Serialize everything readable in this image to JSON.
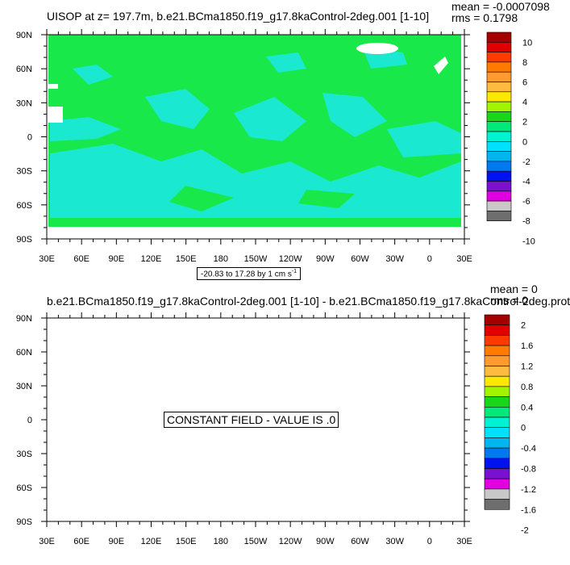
{
  "top_panel": {
    "title": "UISOP at z= 197.7m, b.e21.BCma1850.f19_g17.8kaControl-2deg.001 [1-10]",
    "mean": "mean = -0.0007098",
    "rms": "rms = 0.1798",
    "range_label": "-20.83 to 17.28 by 1 cm s",
    "range_unit_exp": "-1"
  },
  "bottom_panel": {
    "title": "b.e21.BCma1850.f19_g17.8kaControl-2deg.001 [1-10] - b.e21.BCma1850.f19_g17.8kaControl-2deg.prot",
    "mean": "mean = 0",
    "rms": "rms = 0",
    "constant_label": "CONSTANT FIELD - VALUE IS .0"
  },
  "chart_data": [
    {
      "type": "heatmap",
      "title": "UISOP at z= 197.7m, b.e21.BCma1850.f19_g17.8kaControl-2deg.001 [1-10]",
      "x_tick_labels": [
        "30E",
        "60E",
        "90E",
        "120E",
        "150E",
        "180",
        "150W",
        "120W",
        "90W",
        "60W",
        "30W",
        "0",
        "30E"
      ],
      "y_tick_labels": [
        "90N",
        "60N",
        "30N",
        "0",
        "30S",
        "60S",
        "90S"
      ],
      "colorbar_labels": [
        "10",
        "8",
        "6",
        "4",
        "2",
        "0",
        "-2",
        "-4",
        "-6",
        "-8",
        "-10"
      ],
      "colorbar_colors": [
        "#a50000",
        "#e00000",
        "#ff3a00",
        "#ff7a00",
        "#ff9b30",
        "#ffbb40",
        "#ffe800",
        "#a2f500",
        "#19d619",
        "#00ea7a",
        "#00f2d2",
        "#00e0ff",
        "#00b6f0",
        "#0078f0",
        "#0012f0",
        "#7a10d0",
        "#e000e0",
        "#c8c8c8",
        "#6e6e6e"
      ],
      "dominant_value_color": "#19e84a",
      "secondary_value_color": "#1ae8d0",
      "mean": -0.0007098,
      "rms": 0.1798,
      "min": -20.83,
      "max": 17.28,
      "interval": 1,
      "units": "cm s-1"
    },
    {
      "type": "heatmap",
      "title": "b.e21.BCma1850.f19_g17.8kaControl-2deg.001 [1-10] - b.e21.BCma1850.f19_g17.8kaControl-2deg.prot",
      "x_tick_labels": [
        "30E",
        "60E",
        "90E",
        "120E",
        "150E",
        "180",
        "150W",
        "120W",
        "90W",
        "60W",
        "30W",
        "0",
        "30E"
      ],
      "y_tick_labels": [
        "90N",
        "60N",
        "30N",
        "0",
        "30S",
        "60S",
        "90S"
      ],
      "colorbar_labels": [
        "2",
        "1.6",
        "1.2",
        "0.8",
        "0.4",
        "0",
        "-0.4",
        "-0.8",
        "-1.2",
        "-1.6",
        "-2"
      ],
      "colorbar_colors": [
        "#a50000",
        "#e00000",
        "#ff3a00",
        "#ff7a00",
        "#ff9b30",
        "#ffbb40",
        "#ffe800",
        "#a2f500",
        "#19d619",
        "#00ea7a",
        "#00f2d2",
        "#00e0ff",
        "#00b6f0",
        "#0078f0",
        "#0012f0",
        "#7a10d0",
        "#e000e0",
        "#c8c8c8",
        "#6e6e6e"
      ],
      "mean": 0,
      "rms": 0,
      "constant_value": 0
    }
  ]
}
